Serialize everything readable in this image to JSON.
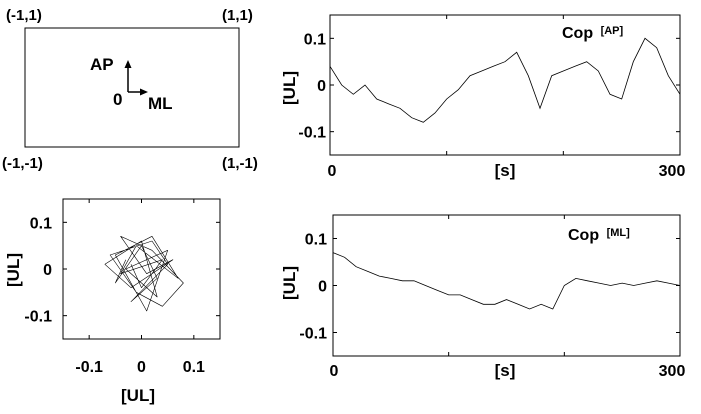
{
  "diagram": {
    "corners": [
      "(-1,1)",
      "(1,1)",
      "(-1,-1)",
      "(1,-1)"
    ],
    "ap_label": "AP",
    "ml_label": "ML",
    "origin_label": "0"
  },
  "chart_data": [
    {
      "id": "cop-ap",
      "type": "line",
      "title": "Cop",
      "title_sub": "[AP]",
      "xlabel": "[s]",
      "ylabel": "[UL]",
      "xlim": [
        0,
        300
      ],
      "ylim": [
        -0.15,
        0.15
      ],
      "x_ticks": [
        "0",
        "300"
      ],
      "y_ticks": [
        0.1,
        0,
        -0.1
      ],
      "y_tick_labels": [
        "0.1",
        "0",
        "-0.1"
      ],
      "series": [
        {
          "x": [
            0,
            10,
            20,
            30,
            40,
            50,
            60,
            70,
            80,
            90,
            100,
            110,
            120,
            130,
            140,
            150,
            160,
            170,
            180,
            190,
            200,
            210,
            220,
            230,
            240,
            250,
            260,
            270,
            280,
            290,
            300
          ],
          "values": [
            0.04,
            0.0,
            -0.02,
            0.0,
            -0.03,
            -0.04,
            -0.05,
            -0.07,
            -0.08,
            -0.06,
            -0.03,
            -0.01,
            0.02,
            0.03,
            0.04,
            0.05,
            0.07,
            0.02,
            -0.05,
            0.02,
            0.03,
            0.04,
            0.05,
            0.03,
            -0.02,
            -0.03,
            0.05,
            0.1,
            0.08,
            0.02,
            -0.02
          ]
        }
      ]
    },
    {
      "id": "cop-ml",
      "type": "line",
      "title": "Cop",
      "title_sub": "[ML]",
      "xlabel": "[s]",
      "ylabel": "[UL]",
      "xlim": [
        0,
        300
      ],
      "ylim": [
        -0.15,
        0.15
      ],
      "x_ticks": [
        "0",
        "300"
      ],
      "y_ticks": [
        0.1,
        0,
        -0.1
      ],
      "y_tick_labels": [
        "0.1",
        "0",
        "-0.1"
      ],
      "series": [
        {
          "x": [
            0,
            10,
            20,
            30,
            40,
            50,
            60,
            70,
            80,
            90,
            100,
            110,
            120,
            130,
            140,
            150,
            160,
            170,
            180,
            190,
            200,
            210,
            220,
            230,
            240,
            250,
            260,
            270,
            280,
            290,
            300
          ],
          "values": [
            0.07,
            0.06,
            0.04,
            0.03,
            0.02,
            0.015,
            0.01,
            0.01,
            0.0,
            -0.01,
            -0.02,
            -0.02,
            -0.03,
            -0.04,
            -0.04,
            -0.03,
            -0.04,
            -0.05,
            -0.04,
            -0.05,
            0.0,
            0.015,
            0.01,
            0.005,
            0.0,
            0.005,
            0.0,
            0.005,
            0.01,
            0.005,
            0.0
          ]
        }
      ]
    },
    {
      "id": "cop-trajectory",
      "type": "line",
      "title": "",
      "xlabel": "[UL]",
      "ylabel": "[UL]",
      "xlim": [
        -0.15,
        0.15
      ],
      "ylim": [
        -0.15,
        0.15
      ],
      "x_ticks": [
        -0.1,
        0,
        0.1
      ],
      "x_tick_labels": [
        "-0.1",
        "0",
        "0.1"
      ],
      "y_ticks": [
        0.1,
        0,
        -0.1
      ],
      "y_tick_labels": [
        "0.1",
        "0",
        "-0.1"
      ],
      "series": [
        {
          "x": [
            -0.03,
            -0.05,
            0.0,
            0.03,
            -0.02,
            0.05,
            0.02,
            -0.06,
            -0.01,
            0.04,
            0.08,
            0.02,
            -0.04,
            0.01,
            0.06,
            -0.02,
            -0.07,
            0.0,
            0.03,
            -0.03,
            0.05,
            0.01,
            -0.05,
            0.02,
            0.07,
            -0.01,
            -0.04,
            0.04,
            0.0,
            -0.02
          ],
          "values": [
            0.02,
            -0.03,
            0.05,
            -0.02,
            -0.07,
            0.01,
            0.06,
            0.03,
            -0.05,
            -0.08,
            -0.03,
            0.04,
            0.07,
            -0.01,
            0.02,
            -0.04,
            0.01,
            0.06,
            -0.06,
            0.0,
            0.04,
            -0.09,
            0.03,
            0.07,
            -0.02,
            0.05,
            -0.01,
            0.02,
            -0.04,
            0.01
          ]
        }
      ]
    }
  ]
}
